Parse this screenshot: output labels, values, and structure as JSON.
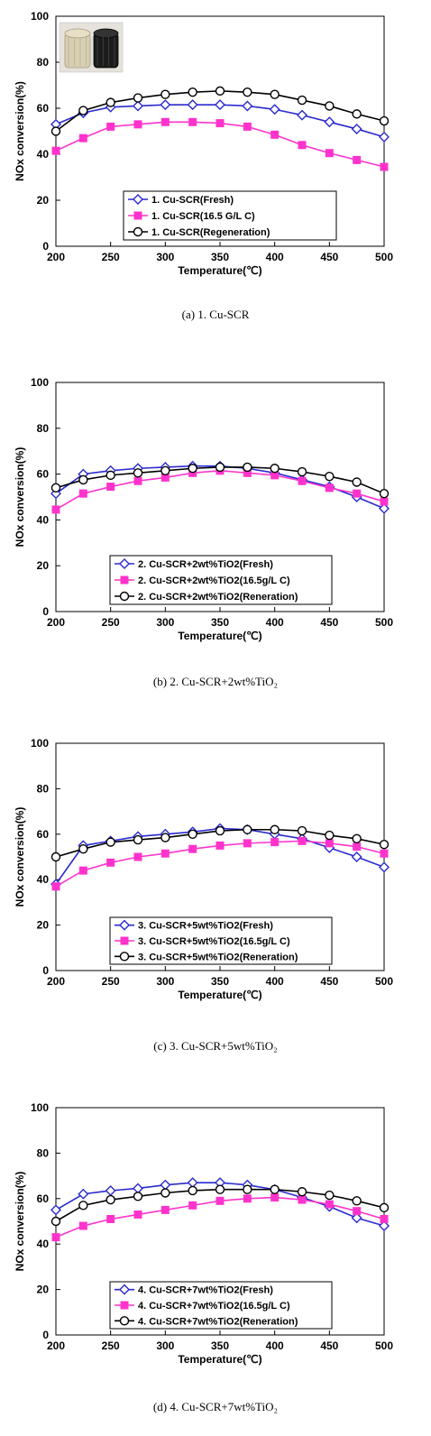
{
  "colors": {
    "fresh": "#2a2ad0",
    "carbon": "#ff33cc",
    "regen": "#000000"
  },
  "chart_data": [
    {
      "type": "line",
      "ylabel": "NOx conversion(%)",
      "xlabel": "Temperature(℃)",
      "caption": "(a)  1.  Cu-SCR",
      "has_photo": true,
      "xlim": [
        200,
        500
      ],
      "ylim": [
        0,
        100
      ],
      "xticks": [
        200,
        250,
        300,
        350,
        400,
        450,
        500
      ],
      "yticks": [
        0,
        20,
        40,
        60,
        80,
        100
      ],
      "x": [
        200,
        225,
        250,
        275,
        300,
        325,
        350,
        375,
        400,
        425,
        450,
        475,
        500
      ],
      "series": [
        {
          "name": "1. Cu-SCR(Fresh)",
          "marker": "diamond",
          "values": [
            53,
            58,
            60.5,
            61,
            61.5,
            61.5,
            61.5,
            61,
            59.5,
            57,
            54,
            51,
            47.5
          ]
        },
        {
          "name": "1. Cu-SCR(16.5 G/L C)",
          "marker": "square",
          "values": [
            41.5,
            47,
            52,
            53,
            54,
            54,
            53.5,
            52,
            48.5,
            44,
            40.5,
            37.5,
            34.5
          ]
        },
        {
          "name": "1. Cu-SCR(Regeneration)",
          "marker": "circle",
          "values": [
            50,
            59,
            62.5,
            64.5,
            66,
            67,
            67.5,
            67,
            66,
            63.5,
            61,
            57.5,
            54.5
          ]
        }
      ]
    },
    {
      "type": "line",
      "ylabel": "NOx conversion(%)",
      "xlabel": "Temperature(℃)",
      "caption": "(b)  2.  Cu-SCR+2wt%TiO₂",
      "has_photo": false,
      "xlim": [
        200,
        500
      ],
      "ylim": [
        0,
        100
      ],
      "xticks": [
        200,
        250,
        300,
        350,
        400,
        450,
        500
      ],
      "yticks": [
        0,
        20,
        40,
        60,
        80,
        100
      ],
      "x": [
        200,
        225,
        250,
        275,
        300,
        325,
        350,
        375,
        400,
        425,
        450,
        475,
        500
      ],
      "series": [
        {
          "name": "2. Cu-SCR+2wt%TiO2(Fresh)",
          "marker": "diamond",
          "values": [
            51.5,
            60,
            61.5,
            62.5,
            63,
            63.5,
            63.5,
            62.5,
            60.5,
            57.5,
            54.5,
            50,
            45
          ]
        },
        {
          "name": "2. Cu-SCR+2wt%TiO2(16.5g/L C)",
          "marker": "square",
          "values": [
            44.5,
            51.5,
            54.5,
            57,
            58.5,
            60.5,
            61.5,
            60.5,
            59.5,
            57,
            54,
            51.5,
            48
          ]
        },
        {
          "name": "2. Cu-SCR+2wt%TiO2(Reneration)",
          "marker": "circle",
          "values": [
            54,
            57.5,
            59.5,
            60.5,
            61.5,
            62.5,
            63,
            63,
            62.5,
            61,
            59,
            56.5,
            51.5
          ]
        }
      ]
    },
    {
      "type": "line",
      "ylabel": "NOx conversion(%)",
      "xlabel": "Temperature(℃)",
      "caption": "(c)  3.  Cu-SCR+5wt%TiO₂",
      "has_photo": false,
      "xlim": [
        200,
        500
      ],
      "ylim": [
        0,
        100
      ],
      "xticks": [
        200,
        250,
        300,
        350,
        400,
        450,
        500
      ],
      "yticks": [
        0,
        20,
        40,
        60,
        80,
        100
      ],
      "x": [
        200,
        225,
        250,
        275,
        300,
        325,
        350,
        375,
        400,
        425,
        450,
        475,
        500
      ],
      "series": [
        {
          "name": "3. Cu-SCR+5wt%TiO2(Fresh)",
          "marker": "diamond",
          "values": [
            38,
            55,
            57,
            59,
            60,
            61,
            62.5,
            62,
            60,
            58,
            54,
            50,
            45.5
          ]
        },
        {
          "name": "3. Cu-SCR+5wt%TiO2(16.5g/L C)",
          "marker": "square",
          "values": [
            37,
            44,
            47.5,
            50,
            51.5,
            53.5,
            55,
            56,
            56.5,
            57,
            56,
            54.5,
            51.5
          ]
        },
        {
          "name": "3. Cu-SCR+5wt%TiO2(Reneration)",
          "marker": "circle",
          "values": [
            50,
            53.5,
            56.5,
            57.5,
            58.5,
            60,
            61.5,
            62,
            62,
            61.5,
            59.5,
            58,
            55.5
          ]
        }
      ]
    },
    {
      "type": "line",
      "ylabel": "NOx conversion(%)",
      "xlabel": "Temperature(℃)",
      "caption": "(d)  4.  Cu-SCR+7wt%TiO₂",
      "has_photo": false,
      "xlim": [
        200,
        500
      ],
      "ylim": [
        0,
        100
      ],
      "xticks": [
        200,
        250,
        300,
        350,
        400,
        450,
        500
      ],
      "yticks": [
        0,
        20,
        40,
        60,
        80,
        100
      ],
      "x": [
        200,
        225,
        250,
        275,
        300,
        325,
        350,
        375,
        400,
        425,
        450,
        475,
        500
      ],
      "series": [
        {
          "name": "4. Cu-SCR+7wt%TiO2(Fresh)",
          "marker": "diamond",
          "values": [
            55,
            62,
            63.5,
            64.5,
            66,
            67,
            67,
            66,
            64,
            60.5,
            56.5,
            51.5,
            48
          ]
        },
        {
          "name": "4. Cu-SCR+7wt%TiO2(16.5g/L C)",
          "marker": "square",
          "values": [
            43,
            48,
            51,
            53,
            55,
            57,
            59,
            60,
            60.5,
            59.5,
            57.5,
            54.5,
            51
          ]
        },
        {
          "name": "4. Cu-SCR+7wt%TiO2(Reneration)",
          "marker": "circle",
          "values": [
            50,
            57,
            59.5,
            61,
            62.5,
            63.5,
            64,
            64,
            64,
            63,
            61.5,
            59,
            56
          ]
        }
      ]
    }
  ]
}
